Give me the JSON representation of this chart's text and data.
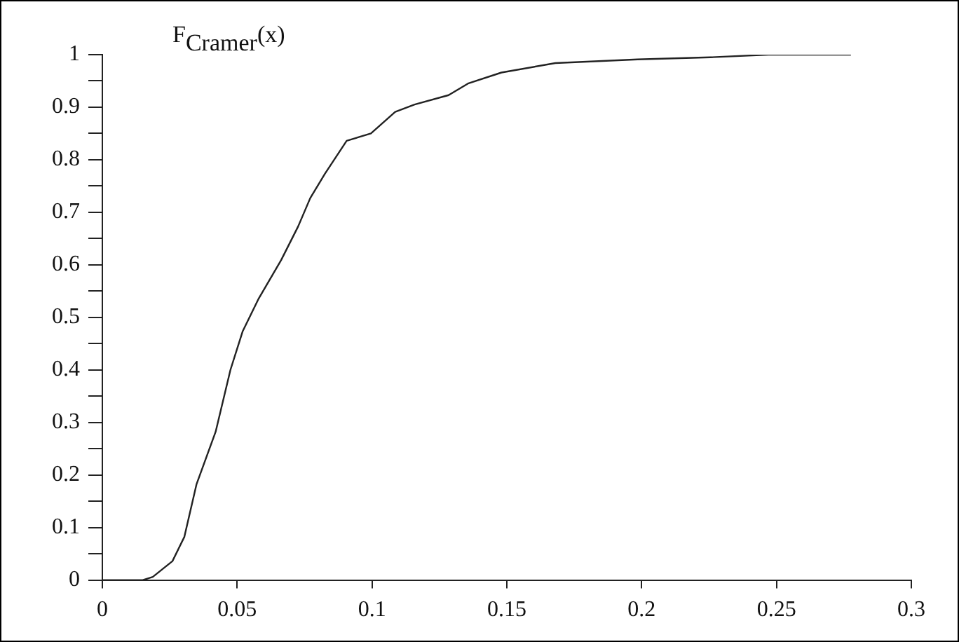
{
  "chart_data": {
    "type": "line",
    "ylabel": "F$_{Cramer}$(x)",
    "series": [
      {
        "color": "#222222",
        "x": [
          0,
          0.015,
          0.0187,
          0.026,
          0.0304,
          0.0349,
          0.042,
          0.0475,
          0.052,
          0.058,
          0.0663,
          0.0726,
          0.0771,
          0.0825,
          0.0906,
          0.0996,
          0.1086,
          0.1158,
          0.1284,
          0.1356,
          0.148,
          0.168,
          0.1985,
          0.2255,
          0.247,
          0.2776
        ],
        "values": [
          0,
          0,
          0.006,
          0.036,
          0.082,
          0.182,
          0.282,
          0.4,
          0.473,
          0.536,
          0.609,
          0.673,
          0.727,
          0.773,
          0.836,
          0.85,
          0.891,
          0.905,
          0.923,
          0.945,
          0.966,
          0.984,
          0.991,
          0.995,
          1.0,
          1.0
        ]
      }
    ],
    "xlim": [
      0,
      0.3
    ],
    "xticks": [
      0,
      0.05,
      0.1,
      0.15,
      0.2,
      0.25,
      0.3
    ],
    "ylim": [
      0,
      1
    ],
    "yticks": [
      0,
      {
        "value": 0.05,
        "label": null
      },
      0.1,
      {
        "value": 0.15,
        "label": null
      },
      0.2,
      {
        "value": 0.25,
        "label": null
      },
      0.3,
      {
        "value": 0.35,
        "label": null
      },
      0.4,
      {
        "value": 0.45,
        "label": null
      },
      0.5,
      {
        "value": 0.55,
        "label": null
      },
      0.6,
      {
        "value": 0.65,
        "label": null
      },
      0.7,
      {
        "value": 0.75,
        "label": null
      },
      0.8,
      {
        "value": 0.85,
        "label": null
      },
      0.9,
      {
        "value": 0.95,
        "label": null
      },
      1
    ],
    "grid": false,
    "legend": false,
    "marker": "none",
    "line_style": "solid"
  }
}
